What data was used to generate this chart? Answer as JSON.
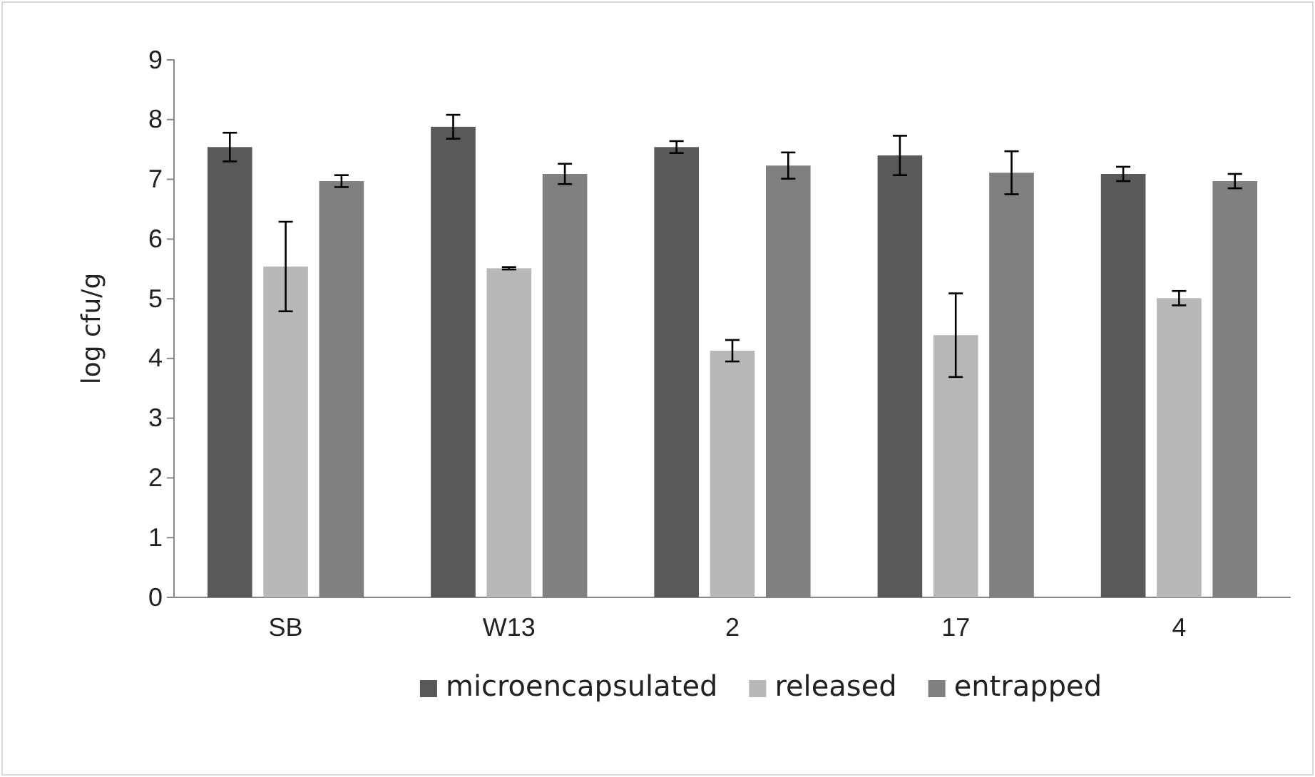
{
  "chart_data": {
    "type": "bar",
    "ylabel": "log cfu/g",
    "categories": [
      "SB",
      "W13",
      "2",
      "17",
      "4"
    ],
    "series": [
      {
        "name": "microencapsulated",
        "color": "#595959",
        "values": [
          7.54,
          7.88,
          7.54,
          7.4,
          7.09
        ],
        "errors": [
          0.24,
          0.2,
          0.1,
          0.33,
          0.12
        ]
      },
      {
        "name": "released",
        "color": "#b8b8b8",
        "values": [
          5.54,
          5.51,
          4.13,
          4.39,
          5.01
        ],
        "errors": [
          0.75,
          0.02,
          0.18,
          0.7,
          0.12
        ]
      },
      {
        "name": "entrapped",
        "color": "#808080",
        "values": [
          6.97,
          7.09,
          7.23,
          7.11,
          6.97
        ],
        "errors": [
          0.1,
          0.17,
          0.22,
          0.36,
          0.12
        ]
      }
    ],
    "ylim": [
      0,
      9
    ],
    "yticks": [
      0,
      1,
      2,
      3,
      4,
      5,
      6,
      7,
      8,
      9
    ],
    "grid": false,
    "legend": "bottom"
  }
}
